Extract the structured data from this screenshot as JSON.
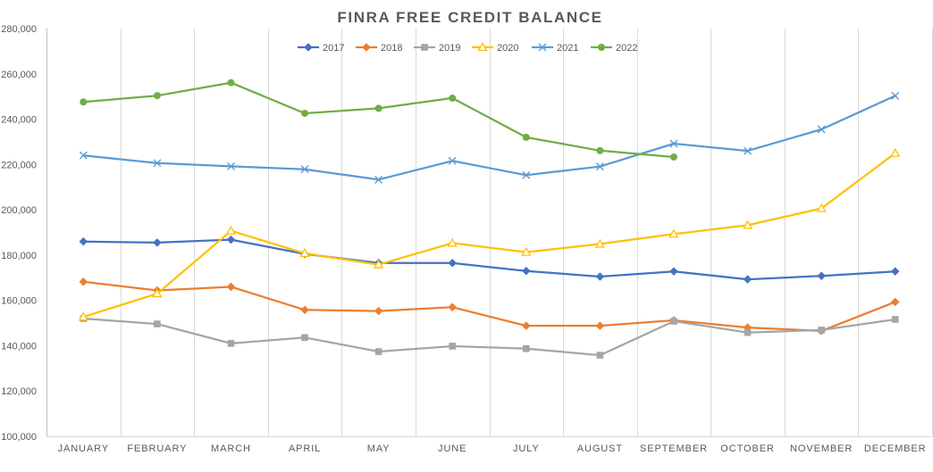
{
  "chart_data": {
    "type": "line",
    "title": "FINRA FREE CREDIT BALANCE",
    "xlabel": "",
    "ylabel": "",
    "ylim": [
      100000,
      280000
    ],
    "yticks": [
      "100,000",
      "120,000",
      "140,000",
      "160,000",
      "180,000",
      "200,000",
      "220,000",
      "240,000",
      "260,000",
      "280,000"
    ],
    "ytick_values": [
      100000,
      120000,
      140000,
      160000,
      180000,
      200000,
      220000,
      240000,
      260000,
      280000
    ],
    "categories": [
      "JANUARY",
      "FEBRUARY",
      "MARCH",
      "APRIL",
      "MAY",
      "JUNE",
      "JULY",
      "AUGUST",
      "SEPTEMBER",
      "OCTOBER",
      "NOVEMBER",
      "DECEMBER"
    ],
    "grid": "vertical",
    "legend_position": "top-center",
    "series": [
      {
        "name": "2017",
        "color": "#4472C4",
        "marker": "diamond",
        "values": [
          186000,
          185500,
          186800,
          180500,
          176500,
          176500,
          173000,
          170500,
          172800,
          169300,
          170800,
          172800
        ]
      },
      {
        "name": "2018",
        "color": "#ED7D31",
        "marker": "diamond",
        "values": [
          168200,
          164400,
          166000,
          155800,
          155300,
          157000,
          148800,
          148800,
          151200,
          148000,
          146500,
          159300
        ]
      },
      {
        "name": "2019",
        "color": "#A5A5A5",
        "marker": "square",
        "values": [
          152000,
          149600,
          141000,
          143600,
          137400,
          139800,
          138700,
          135800,
          150800,
          145800,
          146900,
          151600
        ]
      },
      {
        "name": "2020",
        "color": "#FFC000",
        "marker": "triangle",
        "values": [
          152700,
          163000,
          190700,
          180800,
          175800,
          185300,
          181300,
          184900,
          189300,
          193200,
          200600,
          225000
        ]
      },
      {
        "name": "2021",
        "color": "#5B9BD5",
        "marker": "x",
        "values": [
          224000,
          220600,
          219200,
          217900,
          213300,
          221600,
          215300,
          219100,
          229200,
          226000,
          235500,
          250300
        ]
      },
      {
        "name": "2022",
        "color": "#70AD47",
        "marker": "circle",
        "values": [
          247600,
          250400,
          256100,
          242600,
          244800,
          249300,
          232000,
          226100,
          223300,
          null,
          null,
          null
        ]
      }
    ]
  }
}
